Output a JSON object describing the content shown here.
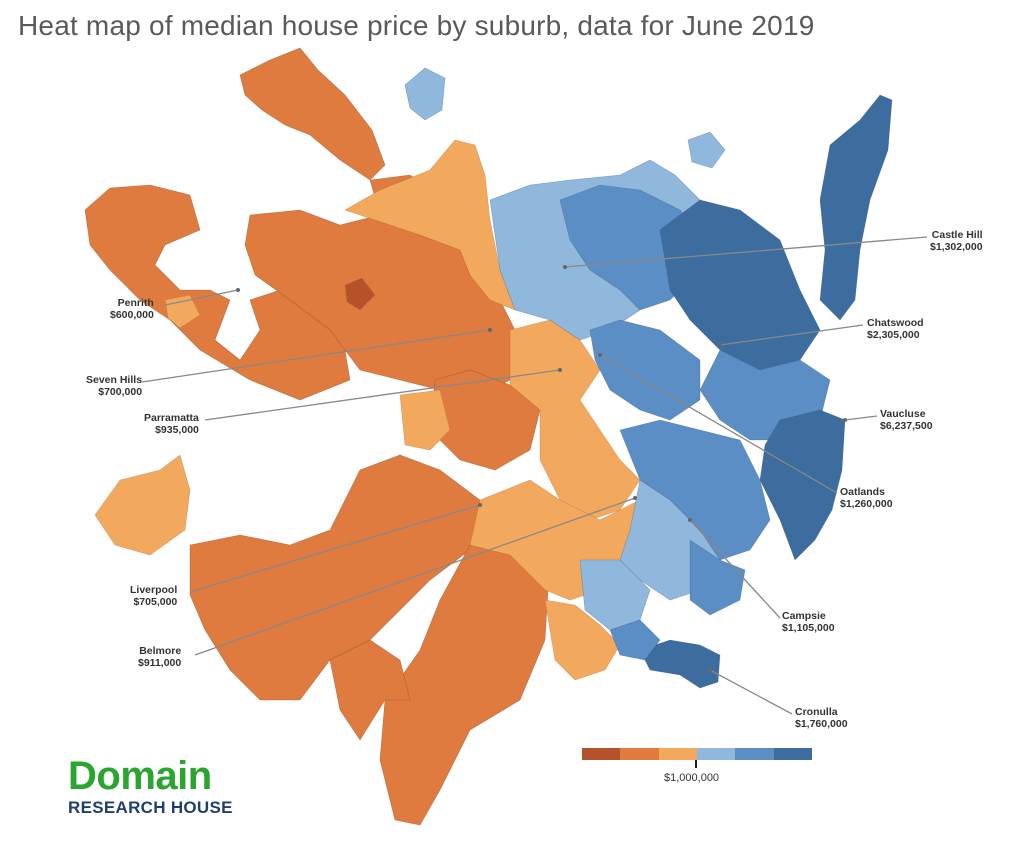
{
  "title": "Heat map of median house price by suburb, data for June 2019",
  "colors": {
    "orange_dark": "#e07b3f",
    "orange_light": "#f2a95e",
    "blue_light": "#8fb8dc",
    "blue_mid": "#5b8ec4",
    "blue_dark": "#3d6c9f",
    "callout_line": "#888888"
  },
  "callouts": [
    {
      "suburb": "Penrith",
      "price": "$600,000"
    },
    {
      "suburb": "Seven Hills",
      "price": "$700,000"
    },
    {
      "suburb": "Parramatta",
      "price": "$935,000"
    },
    {
      "suburb": "Liverpool",
      "price": "$705,000"
    },
    {
      "suburb": "Belmore",
      "price": "$911,000"
    },
    {
      "suburb": "Castle Hill",
      "price": "$1,302,000"
    },
    {
      "suburb": "Chatswood",
      "price": "$2,305,000"
    },
    {
      "suburb": "Vaucluse",
      "price": "$6,237,500"
    },
    {
      "suburb": "Oatlands",
      "price": "$1,260,000"
    },
    {
      "suburb": "Campsie",
      "price": "$1,105,000"
    },
    {
      "suburb": "Cronulla",
      "price": "$1,760,000"
    }
  ],
  "legend": {
    "label": "$1,000,000",
    "colors": [
      "#b5522a",
      "#e07b3f",
      "#f2a95e",
      "#8fb8dc",
      "#5b8ec4",
      "#3d6c9f"
    ]
  },
  "logo": {
    "main": "Domain",
    "sub": "RESEARCH HOUSE",
    "main_color": "#2aa52f",
    "sub_color": "#1f3f6e"
  }
}
